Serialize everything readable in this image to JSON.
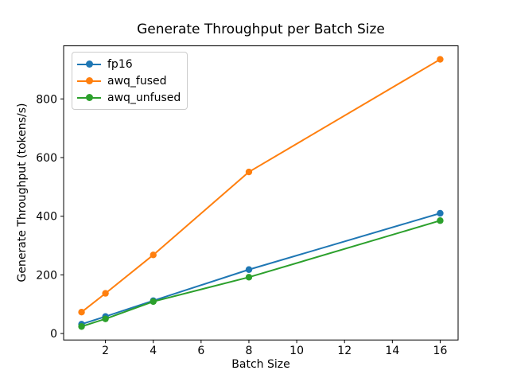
{
  "chart_data": {
    "type": "line",
    "title": "Generate Throughput per Batch Size",
    "xlabel": "Batch Size",
    "ylabel": "Generate Throughput (tokens/s)",
    "x": [
      1,
      2,
      4,
      8,
      16
    ],
    "series": [
      {
        "name": "fp16",
        "color": "#1f77b4",
        "values": [
          32,
          58,
          112,
          218,
          410
        ]
      },
      {
        "name": "awq_fused",
        "color": "#ff7f0e",
        "values": [
          73,
          137,
          268,
          551,
          935
        ]
      },
      {
        "name": "awq_unfused",
        "color": "#2ca02c",
        "values": [
          24,
          50,
          109,
          192,
          385
        ]
      }
    ],
    "xticks": [
      2,
      4,
      6,
      8,
      10,
      12,
      14,
      16
    ],
    "yticks": [
      0,
      200,
      400,
      600,
      800
    ],
    "xlim": [
      0.25,
      16.75
    ],
    "ylim": [
      -22,
      981
    ],
    "grid": false,
    "legend_position": "upper left",
    "marker": "o",
    "background_color": "#ffffff",
    "axis_color": "#000000"
  }
}
